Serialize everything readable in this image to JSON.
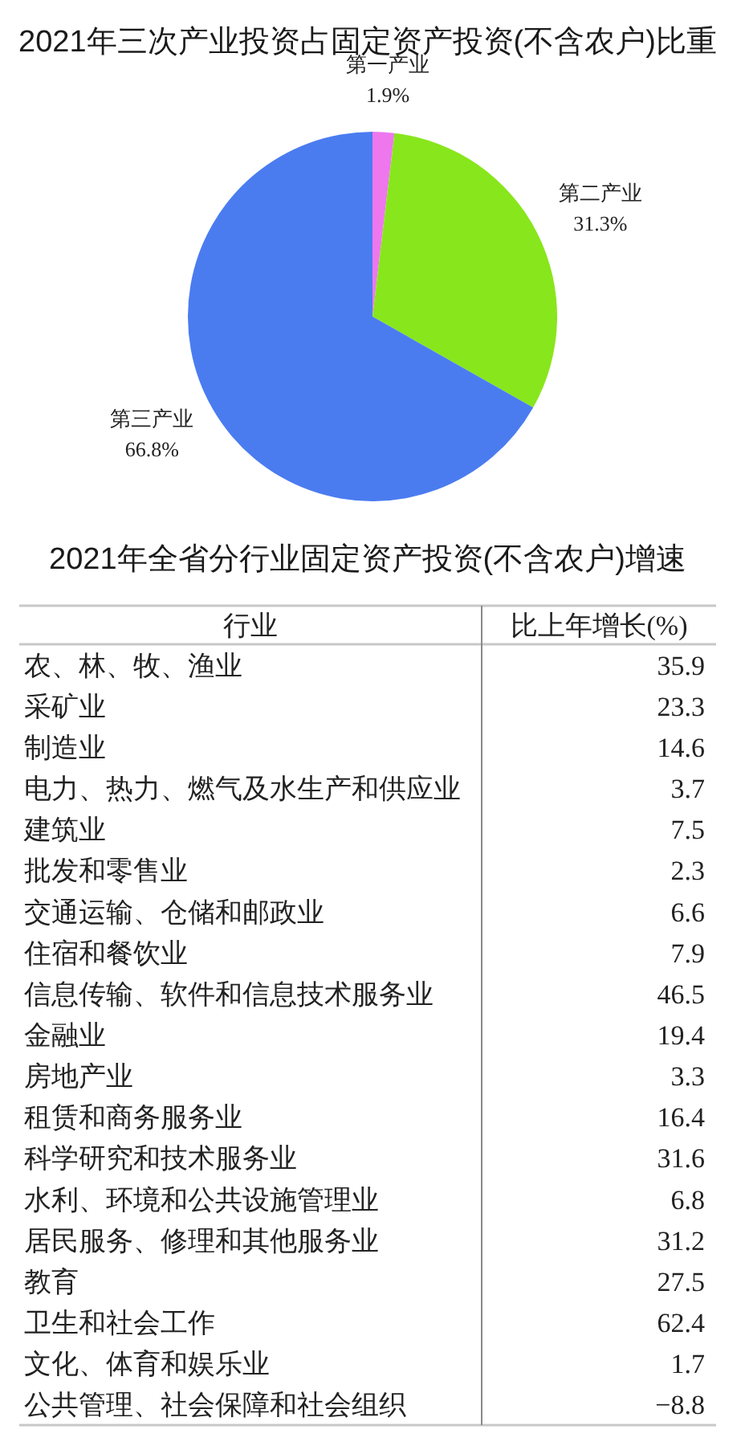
{
  "chart_data": [
    {
      "type": "pie",
      "title": "2021年三次产业投资占固定资产投资(不含农户)比重",
      "categories": [
        "第一产业",
        "第二产业",
        "第三产业"
      ],
      "values": [
        1.9,
        31.3,
        66.8
      ],
      "colors": [
        "#ee77ee",
        "#88e61c",
        "#4a7cf0"
      ],
      "value_labels": [
        "1.9%",
        "31.3%",
        "66.8%"
      ]
    },
    {
      "type": "other",
      "title": "2021年全省分行业固定资产投资(不含农户)增速",
      "xlabel": "行业",
      "ylabel": "比上年增长(%)",
      "categories": [
        "农、林、牧、渔业",
        "采矿业",
        "制造业",
        "电力、热力、燃气及水生产和供应业",
        "建筑业",
        "批发和零售业",
        "交通运输、仓储和邮政业",
        "住宿和餐饮业",
        "信息传输、软件和信息技术服务业",
        "金融业",
        "房地产业",
        "租赁和商务服务业",
        "科学研究和技术服务业",
        "水利、环境和公共设施管理业",
        "居民服务、修理和其他服务业",
        "教育",
        "卫生和社会工作",
        "文化、体育和娱乐业",
        "公共管理、社会保障和社会组织"
      ],
      "values": [
        35.9,
        23.3,
        14.6,
        3.7,
        7.5,
        2.3,
        6.6,
        7.9,
        46.5,
        19.4,
        3.3,
        16.4,
        31.6,
        6.8,
        31.2,
        27.5,
        62.4,
        1.7,
        -8.8
      ],
      "data_labels": true
    }
  ]
}
